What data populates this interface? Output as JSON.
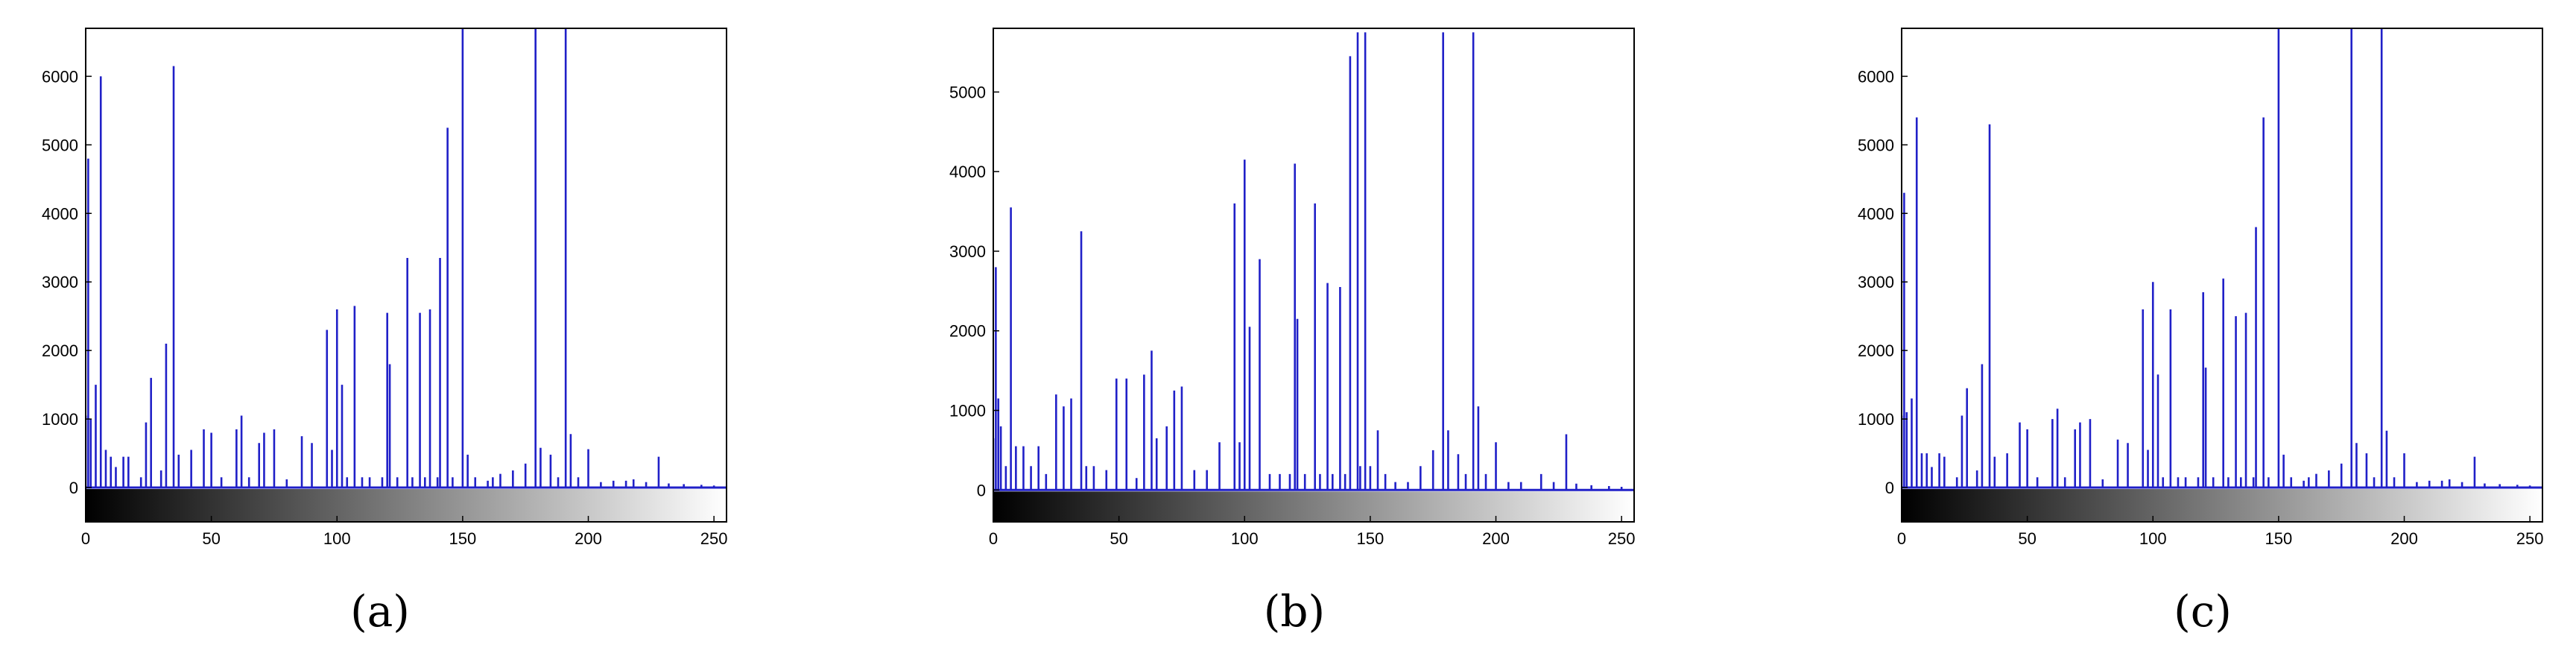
{
  "colors": {
    "bar": "#2020c8",
    "axis": "#000000",
    "background": "#ffffff"
  },
  "chart_data": [
    {
      "type": "bar",
      "caption": "(a)",
      "xlim": [
        0,
        255
      ],
      "ylim": [
        -500,
        6700
      ],
      "xticks": [
        0,
        50,
        100,
        150,
        200,
        250
      ],
      "yticks": [
        0,
        1000,
        2000,
        3000,
        4000,
        5000,
        6000
      ],
      "colorbar": "grayscale gradient 0-255 below axis",
      "grid": false,
      "x": [
        0,
        1,
        2,
        4,
        6,
        8,
        10,
        12,
        15,
        17,
        22,
        24,
        26,
        30,
        32,
        35,
        37,
        42,
        47,
        50,
        54,
        60,
        62,
        65,
        69,
        71,
        75,
        80,
        86,
        90,
        96,
        98,
        100,
        102,
        104,
        107,
        110,
        113,
        118,
        120,
        121,
        124,
        128,
        130,
        133,
        135,
        137,
        140,
        141,
        144,
        146,
        150,
        152,
        155,
        160,
        162,
        165,
        170,
        175,
        179,
        181,
        185,
        188,
        191,
        193,
        196,
        200,
        205,
        210,
        215,
        218,
        223,
        228,
        232,
        238,
        245,
        250
      ],
      "values": [
        1050,
        4800,
        1000,
        1500,
        6000,
        550,
        450,
        300,
        450,
        450,
        150,
        950,
        1600,
        250,
        2100,
        6150,
        480,
        550,
        850,
        800,
        150,
        850,
        1050,
        150,
        650,
        800,
        850,
        120,
        750,
        650,
        2300,
        550,
        2600,
        1500,
        150,
        2650,
        150,
        150,
        150,
        2550,
        1800,
        150,
        3350,
        150,
        2550,
        150,
        2600,
        150,
        3350,
        5250,
        150,
        6750,
        480,
        150,
        100,
        150,
        200,
        250,
        350,
        6750,
        580,
        480,
        150,
        6750,
        780,
        150,
        560,
        80,
        100,
        100,
        120,
        80,
        450,
        60,
        50,
        40,
        30
      ]
    },
    {
      "type": "bar",
      "caption": "(b)",
      "xlim": [
        0,
        255
      ],
      "ylim": [
        -400,
        5800
      ],
      "xticks": [
        0,
        50,
        100,
        150,
        200,
        250
      ],
      "yticks": [
        0,
        1000,
        2000,
        3000,
        4000,
        5000
      ],
      "colorbar": "grayscale gradient 0-255 below axis",
      "grid": false,
      "x": [
        0,
        1,
        2,
        3,
        5,
        7,
        9,
        12,
        15,
        18,
        21,
        25,
        28,
        31,
        35,
        37,
        40,
        45,
        49,
        53,
        57,
        60,
        63,
        65,
        69,
        72,
        75,
        80,
        85,
        90,
        96,
        98,
        100,
        102,
        106,
        110,
        114,
        118,
        120,
        121,
        124,
        128,
        130,
        133,
        135,
        138,
        140,
        142,
        145,
        146,
        148,
        150,
        153,
        156,
        160,
        165,
        170,
        175,
        179,
        181,
        185,
        188,
        191,
        193,
        196,
        200,
        205,
        210,
        218,
        223,
        228,
        232,
        238,
        245,
        250
      ],
      "values": [
        650,
        2800,
        1150,
        800,
        300,
        3550,
        550,
        550,
        300,
        550,
        200,
        1200,
        1050,
        1150,
        3250,
        300,
        300,
        250,
        1400,
        1400,
        150,
        1450,
        1750,
        650,
        800,
        1250,
        1300,
        250,
        250,
        600,
        3600,
        600,
        4150,
        2050,
        2900,
        200,
        200,
        200,
        4100,
        2150,
        200,
        3600,
        200,
        2600,
        200,
        2550,
        200,
        5450,
        5750,
        300,
        5750,
        300,
        750,
        200,
        100,
        100,
        300,
        500,
        5750,
        750,
        450,
        200,
        5750,
        1050,
        200,
        600,
        100,
        100,
        200,
        100,
        700,
        80,
        60,
        50,
        40
      ]
    },
    {
      "type": "bar",
      "caption": "(c)",
      "xlim": [
        0,
        255
      ],
      "ylim": [
        -500,
        6700
      ],
      "xticks": [
        0,
        50,
        100,
        150,
        200,
        250
      ],
      "yticks": [
        0,
        1000,
        2000,
        3000,
        4000,
        5000,
        6000
      ],
      "colorbar": "grayscale gradient 0-255 below axis",
      "grid": false,
      "x": [
        0,
        1,
        2,
        4,
        6,
        8,
        10,
        12,
        15,
        17,
        22,
        24,
        26,
        30,
        32,
        35,
        37,
        42,
        47,
        50,
        54,
        60,
        62,
        65,
        69,
        71,
        75,
        80,
        86,
        90,
        96,
        98,
        100,
        102,
        104,
        107,
        110,
        113,
        118,
        120,
        121,
        124,
        128,
        130,
        133,
        135,
        137,
        140,
        141,
        144,
        146,
        150,
        152,
        155,
        160,
        162,
        165,
        170,
        175,
        179,
        181,
        185,
        188,
        191,
        193,
        196,
        200,
        205,
        210,
        215,
        218,
        223,
        228,
        232,
        238,
        245,
        250
      ],
      "values": [
        1050,
        4300,
        1100,
        1300,
        5400,
        500,
        500,
        300,
        500,
        450,
        150,
        1050,
        1450,
        250,
        1800,
        5300,
        450,
        500,
        950,
        850,
        150,
        1000,
        1150,
        150,
        850,
        950,
        1000,
        120,
        700,
        650,
        2600,
        550,
        3000,
        1650,
        150,
        2600,
        150,
        150,
        150,
        2850,
        1750,
        150,
        3050,
        150,
        2500,
        150,
        2550,
        150,
        3800,
        5400,
        150,
        6750,
        480,
        150,
        100,
        150,
        200,
        250,
        350,
        6750,
        650,
        500,
        150,
        6750,
        830,
        150,
        500,
        80,
        100,
        100,
        120,
        80,
        450,
        60,
        50,
        40,
        30
      ]
    }
  ],
  "captions": [
    "(a)",
    "(b)",
    "(c)"
  ]
}
